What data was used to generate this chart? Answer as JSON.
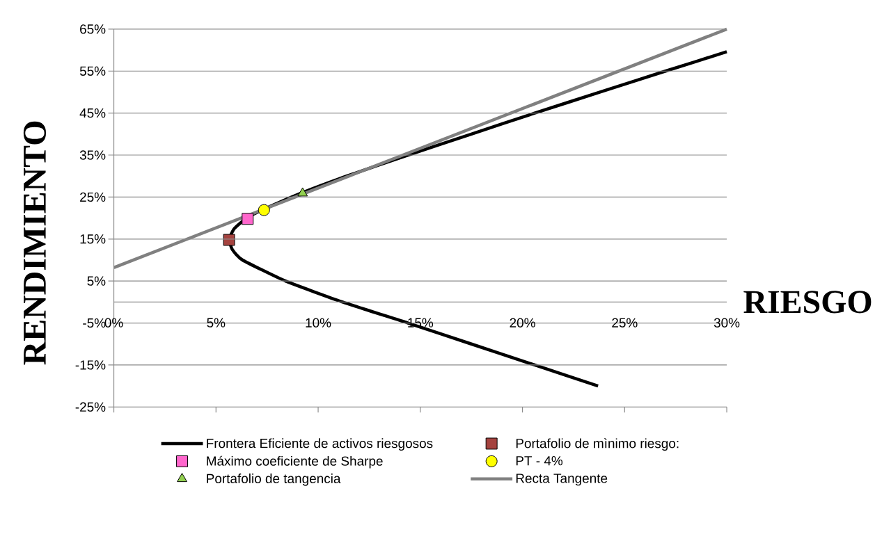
{
  "chart_data": {
    "type": "line",
    "xlabel": "RIESGO",
    "ylabel": "RENDIMIENTO",
    "xlim": [
      0,
      30
    ],
    "ylim": [
      -25,
      65
    ],
    "xticks": [
      {
        "value": 0,
        "label": "0%"
      },
      {
        "value": 5,
        "label": "5%"
      },
      {
        "value": 10,
        "label": "10%"
      },
      {
        "value": 15,
        "label": "15%"
      },
      {
        "value": 20,
        "label": "20%"
      },
      {
        "value": 25,
        "label": "25%"
      },
      {
        "value": 30,
        "label": "30%"
      }
    ],
    "yticks": [
      {
        "value": -25,
        "label": "-25%"
      },
      {
        "value": -15,
        "label": "-15%"
      },
      {
        "value": -5,
        "label": "-5%"
      },
      {
        "value": 5,
        "label": "5%"
      },
      {
        "value": 15,
        "label": "15%"
      },
      {
        "value": 25,
        "label": "25%"
      },
      {
        "value": 35,
        "label": "35%"
      },
      {
        "value": 45,
        "label": "45%"
      },
      {
        "value": 55,
        "label": "55%"
      },
      {
        "value": 65,
        "label": "65%"
      }
    ],
    "grid": "y",
    "legend": "bottom",
    "series": [
      {
        "name": "Frontera Eficiente de activos riesgosos",
        "color": "#000000",
        "marker": "none",
        "x": [
          23.7,
          20.6,
          17.5,
          14.4,
          11.2,
          8.4,
          6.3,
          5.8,
          5.65,
          5.9,
          6.5,
          7.3,
          9.2,
          11.4,
          14.4,
          17.5,
          20.6,
          23.8,
          27.0,
          30.0
        ],
        "values": [
          -20,
          -15,
          -10,
          -5,
          0,
          5,
          10,
          12.5,
          15,
          17.5,
          20,
          22,
          26,
          30,
          35,
          40,
          45,
          50,
          55,
          59.6
        ]
      },
      {
        "name": "Portafolio de mìnimo riesgo:",
        "type": "scatter",
        "color": "#a5433f",
        "marker": "square",
        "x": [
          5.64
        ],
        "values": [
          14.8
        ]
      },
      {
        "name": "Máximo coeficiente de Sharpe",
        "type": "scatter",
        "color": "#ff66cc",
        "marker": "square",
        "x": [
          6.55
        ],
        "values": [
          19.8
        ]
      },
      {
        "name": "PT - 4%",
        "type": "scatter",
        "color": "#ffff00",
        "marker": "circle",
        "x": [
          7.35
        ],
        "values": [
          21.9
        ]
      },
      {
        "name": "Portafolio de tangencia",
        "type": "scatter",
        "color": "#92d050",
        "marker": "triangle",
        "x": [
          9.24
        ],
        "values": [
          25.9
        ]
      },
      {
        "name": "Recta Tangente",
        "color": "#808080",
        "marker": "none",
        "x": [
          0,
          30
        ],
        "values": [
          8.2,
          65
        ]
      }
    ]
  }
}
